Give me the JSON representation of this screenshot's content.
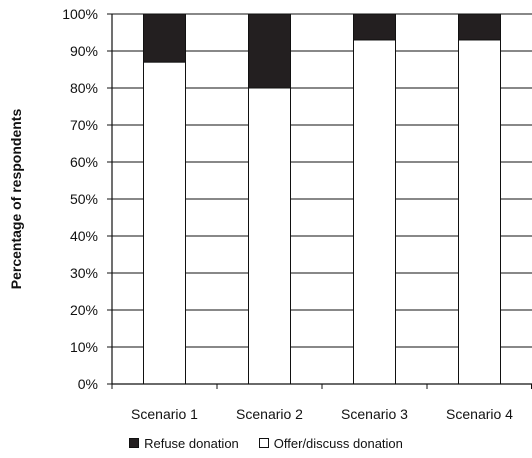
{
  "chart_data": {
    "type": "bar",
    "stacked": true,
    "percent": true,
    "categories": [
      "Scenario 1",
      "Scenario 2",
      "Scenario 3",
      "Scenario 4"
    ],
    "series": [
      {
        "name": "Offer/discuss donation",
        "values": [
          87,
          80,
          93,
          93
        ],
        "color": "#ffffff"
      },
      {
        "name": "Refuse donation",
        "values": [
          13,
          20,
          7,
          7
        ],
        "color": "#231f20"
      }
    ],
    "ylabel": "Percentage of respondents",
    "xlabel": "",
    "ylim": [
      0,
      100
    ],
    "yticks": [
      "0%",
      "10%",
      "20%",
      "30%",
      "40%",
      "50%",
      "60%",
      "70%",
      "80%",
      "90%",
      "100%"
    ],
    "grid": true,
    "legend_position": "bottom"
  },
  "legend": {
    "items": [
      {
        "label": "Refuse donation",
        "color": "#231f20"
      },
      {
        "label": "Offer/discuss donation",
        "color": "#ffffff"
      }
    ]
  }
}
